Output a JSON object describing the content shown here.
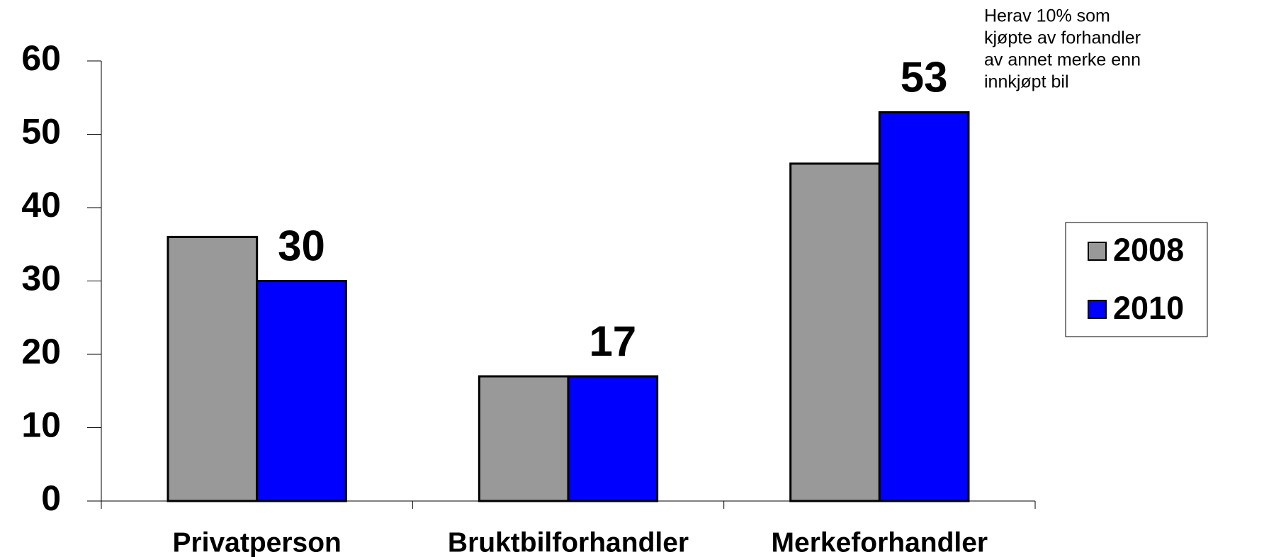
{
  "chart_data": {
    "type": "bar",
    "categories": [
      "Privatperson",
      "Bruktbilforhandler",
      "Merkeforhandler"
    ],
    "series": [
      {
        "name": "2008",
        "color": "#999999",
        "values": [
          36,
          17,
          46
        ]
      },
      {
        "name": "2010",
        "color": "#0000ff",
        "values": [
          30,
          17,
          53
        ],
        "show_labels": true
      }
    ],
    "ylim": [
      0,
      60
    ],
    "yticks": [
      0,
      10,
      20,
      30,
      40,
      50,
      60
    ],
    "grid": false,
    "legend": "right",
    "annotation": [
      "Herav 10% som",
      "kjøpte av forhandler",
      "av annet merke enn",
      "innkjøpt bil"
    ]
  }
}
